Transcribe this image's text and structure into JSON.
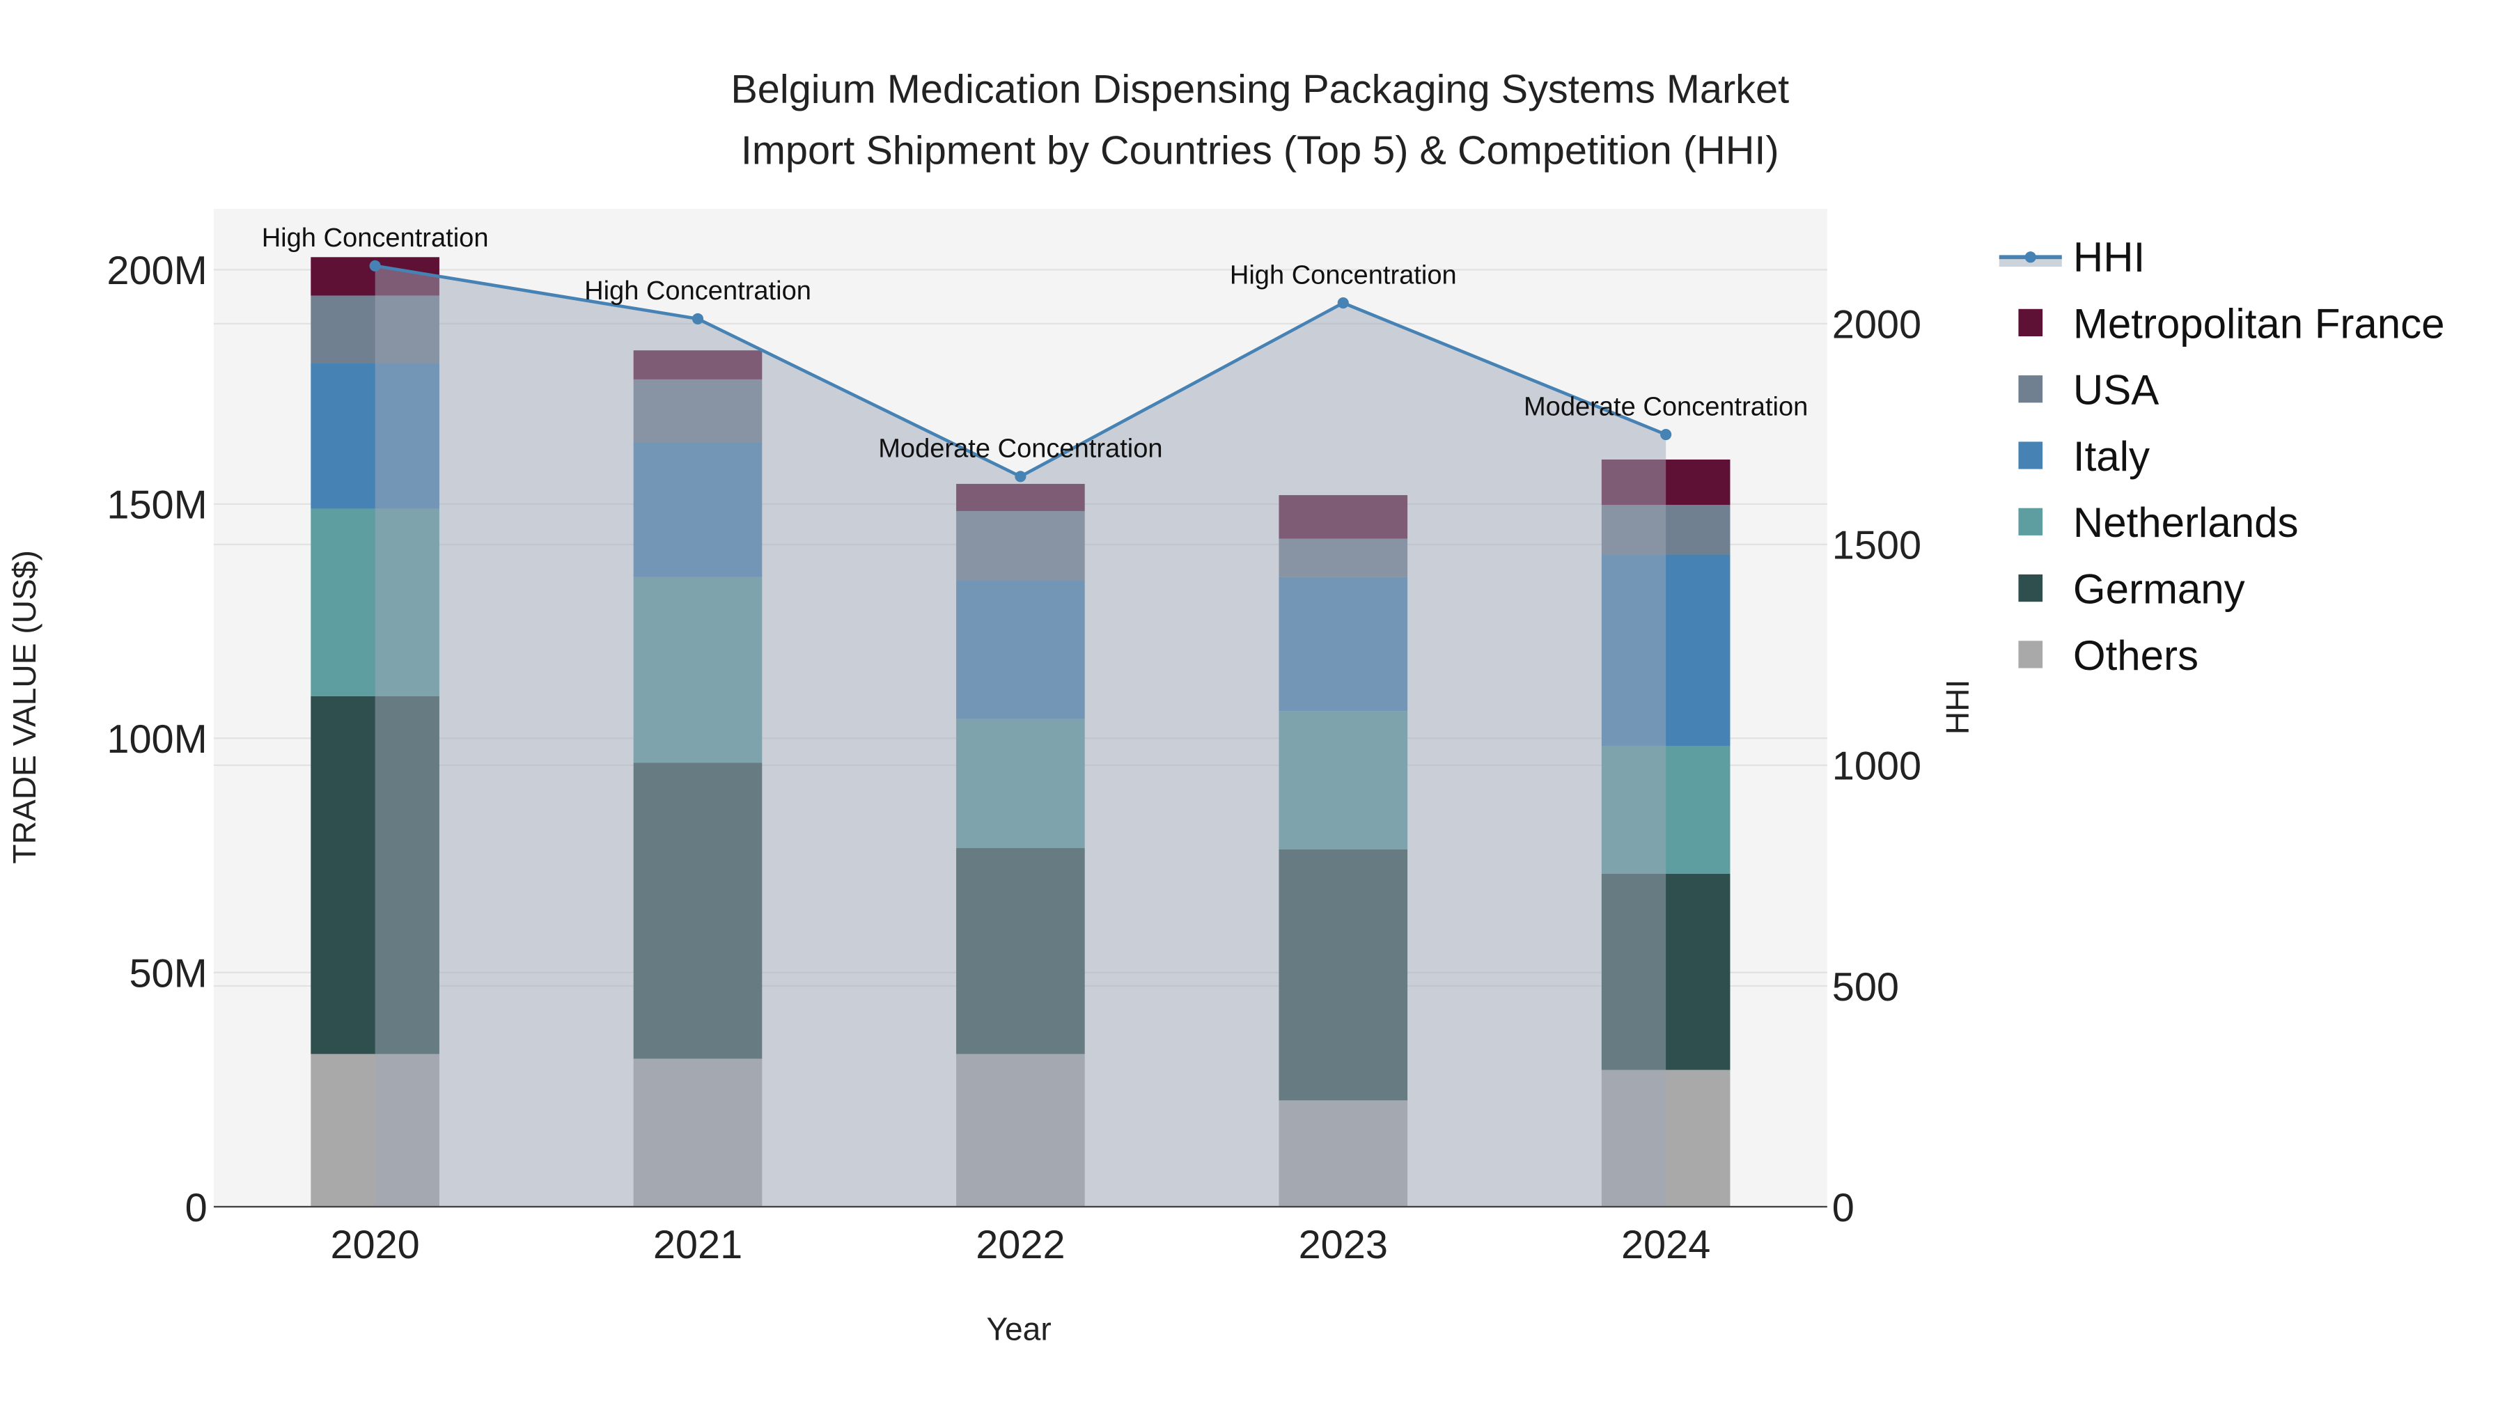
{
  "chart_data": {
    "type": "bar",
    "stacked": true,
    "title_line1": "Belgium Medication Dispensing Packaging Systems Market",
    "title_line2": "Import Shipment by Countries (Top 5) & Competition (HHI)",
    "xlabel": "Year",
    "ylabel": "TRADE VALUE (US$)",
    "y2label": "HHI",
    "categories": [
      "2020",
      "2021",
      "2022",
      "2023",
      "2024"
    ],
    "ylim": [
      0,
      213
    ],
    "y_ticks": [
      0,
      50,
      100,
      150,
      200
    ],
    "y_tick_labels": [
      "0",
      "50M",
      "100M",
      "150M",
      "200M"
    ],
    "y2lim": [
      0,
      2260
    ],
    "y2_ticks": [
      0,
      500,
      1000,
      1500,
      2000
    ],
    "y2_tick_labels": [
      "0",
      "500",
      "1000",
      "1500",
      "2000"
    ],
    "grid": true,
    "legend_position": "right",
    "series": [
      {
        "name": "Others",
        "color": "#a9a9a9",
        "values": [
          32.6,
          31.6,
          32.6,
          22.7,
          29.2
        ]
      },
      {
        "name": "Germany",
        "color": "#2f4f4f",
        "values": [
          76.4,
          63.2,
          44.0,
          53.6,
          41.9
        ]
      },
      {
        "name": "Netherlands",
        "color": "#5f9ea0",
        "values": [
          40.0,
          39.6,
          27.5,
          29.5,
          27.2
        ]
      },
      {
        "name": "Italy",
        "color": "#4682b4",
        "values": [
          31.0,
          28.8,
          29.6,
          28.6,
          40.9
        ]
      },
      {
        "name": "USA",
        "color": "#708090",
        "values": [
          14.5,
          13.4,
          14.8,
          8.2,
          10.6
        ]
      },
      {
        "name": "Metropolitan France",
        "color": "#5e1035",
        "values": [
          8.2,
          6.2,
          5.8,
          9.3,
          9.7
        ]
      }
    ],
    "hhi": {
      "name": "HHI",
      "color": "#4682b4",
      "values": [
        2131,
        2011,
        1654,
        2047,
        1749
      ],
      "annotations": [
        "High Concentration",
        "High Concentration",
        "Moderate Concentration",
        "High Concentration",
        "Moderate Concentration"
      ]
    },
    "legend_order": [
      "HHI",
      "Metropolitan France",
      "USA",
      "Italy",
      "Netherlands",
      "Germany",
      "Others"
    ]
  }
}
